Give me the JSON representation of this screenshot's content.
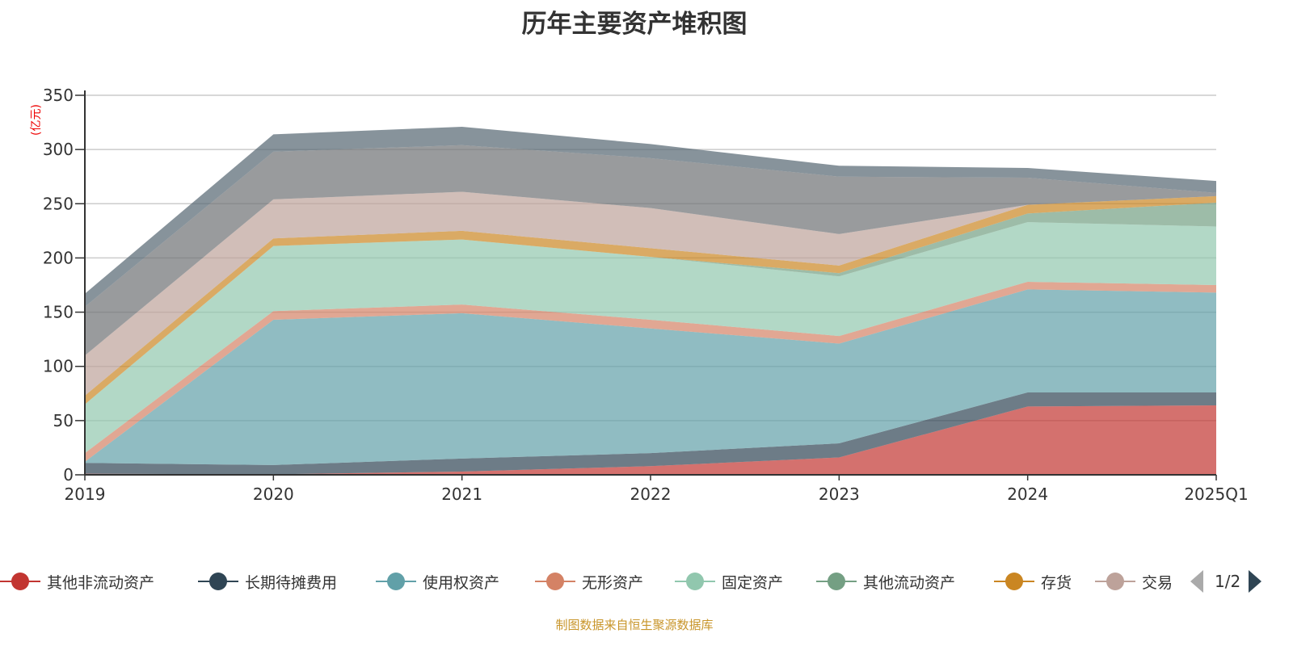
{
  "chart_data": {
    "type": "area",
    "stacked": true,
    "title": "历年主要资产堆积图",
    "ylabel": "(亿元)",
    "ylim": [
      0,
      350
    ],
    "yticks": [
      0,
      50,
      100,
      150,
      200,
      250,
      300,
      350
    ],
    "grid": true,
    "legend_position": "bottom",
    "categories": [
      "2019",
      "2020",
      "2021",
      "2022",
      "2023",
      "2024",
      "2025Q1"
    ],
    "series": [
      {
        "name": "其他非流动资产",
        "color": "#c23531",
        "values": [
          1,
          0.5,
          3,
          8,
          16,
          63,
          64
        ]
      },
      {
        "name": "长期待摊费用",
        "color": "#2f4554",
        "values": [
          10,
          8.5,
          12,
          12,
          13,
          13,
          12
        ]
      },
      {
        "name": "使用权资产",
        "color": "#61a0a8",
        "values": [
          1,
          134,
          134,
          115,
          92,
          95,
          92
        ]
      },
      {
        "name": "无形资产",
        "color": "#d48265",
        "values": [
          8,
          8,
          8,
          8,
          7,
          7,
          7
        ]
      },
      {
        "name": "固定资产",
        "color": "#91c7ae",
        "values": [
          45,
          60,
          60,
          58,
          55,
          55,
          54
        ]
      },
      {
        "name": "其他流动资产",
        "color": "#749f83",
        "values": [
          0,
          0,
          0,
          0,
          3,
          8,
          22
        ]
      },
      {
        "name": "存货",
        "color": "#ca8622",
        "values": [
          8,
          7,
          8,
          8,
          7,
          8,
          6
        ]
      },
      {
        "name": "交易",
        "color": "#bda29a",
        "values": [
          37,
          36,
          36,
          37,
          29,
          0,
          0
        ]
      },
      {
        "color": "#6e7074",
        "values": [
          45,
          44,
          43,
          46,
          53,
          25,
          3
        ]
      },
      {
        "color": "#546570",
        "values": [
          12,
          16,
          17,
          13,
          10,
          9,
          11
        ]
      }
    ]
  },
  "legend": {
    "page_indicator": "1/2"
  },
  "footer": "制图数据来自恒生聚源数据库"
}
